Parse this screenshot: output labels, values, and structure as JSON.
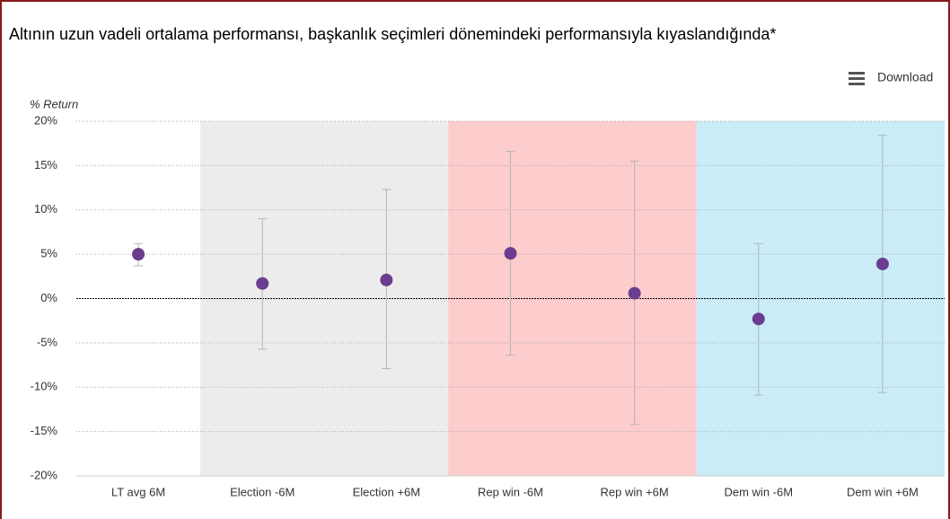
{
  "chart_data": {
    "type": "errorbar",
    "title": "Altının uzun vadeli ortalama performansı, başkanlık seçimleri dönemindeki performansıyla kıyaslandığında*",
    "ylabel": "% Return",
    "download_label": "Download",
    "categories": [
      "LT avg 6M",
      "Election -6M",
      "Election +6M",
      "Rep win -6M",
      "Rep win +6M",
      "Dem win -6M",
      "Dem win +6M"
    ],
    "values": [
      5.0,
      1.7,
      2.1,
      5.1,
      0.6,
      -2.3,
      3.9
    ],
    "low": [
      3.7,
      -5.7,
      -7.9,
      -6.4,
      -14.2,
      -10.9,
      -10.6
    ],
    "high": [
      6.2,
      9.0,
      12.3,
      16.6,
      15.5,
      6.2,
      18.4
    ],
    "color": "#6a3d8f",
    "errorbar_color": "#b5b5b5",
    "band_colors": [
      "#ffffff",
      "#ececec",
      "#ececec",
      "#fdcccc",
      "#fdcccc",
      "#c9ecf8",
      "#c9ecf8"
    ],
    "ylim": [
      -20,
      20
    ],
    "yticks": [
      {
        "value": -20,
        "label": "-20%"
      },
      {
        "value": -15,
        "label": "-15%"
      },
      {
        "value": -10,
        "label": "-10%"
      },
      {
        "value": -5,
        "label": "-5%"
      },
      {
        "value": 0,
        "label": "0%"
      },
      {
        "value": 5,
        "label": "5%"
      },
      {
        "value": 10,
        "label": "10%"
      },
      {
        "value": 15,
        "label": "15%"
      },
      {
        "value": 20,
        "label": "20%"
      }
    ],
    "grid": true
  }
}
